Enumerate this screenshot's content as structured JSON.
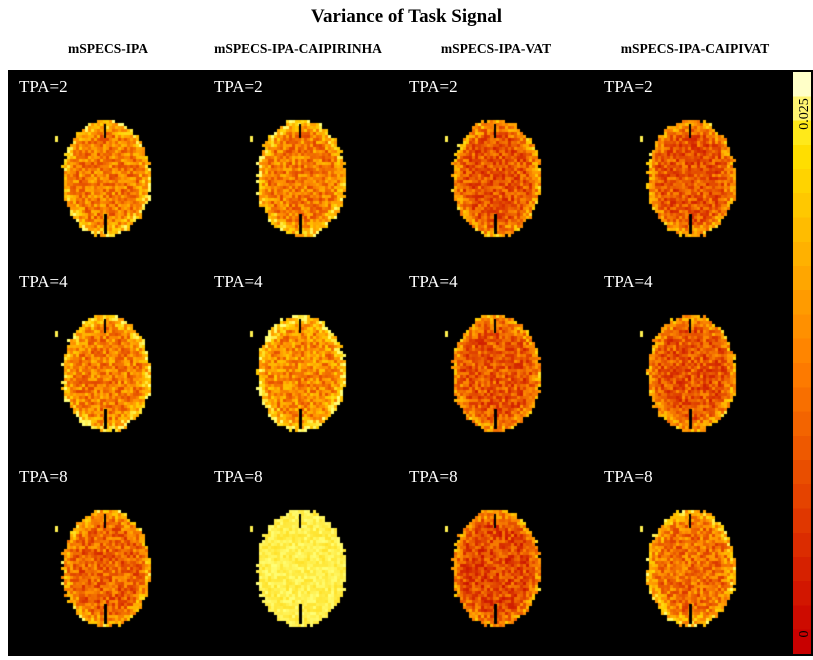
{
  "title": "Variance of Task Signal",
  "columns": [
    "mSPECS-IPA",
    "mSPECS-IPA-CAIPIRINHA",
    "mSPECS-IPA-VAT",
    "mSPECS-IPA-CAIPIVAT"
  ],
  "rows": [
    {
      "label": "TPA=2",
      "intensity": [
        0.55,
        0.55,
        0.4,
        0.4
      ]
    },
    {
      "label": "TPA=4",
      "intensity": [
        0.55,
        0.6,
        0.4,
        0.4
      ]
    },
    {
      "label": "TPA=8",
      "intensity": [
        0.45,
        0.98,
        0.35,
        0.5
      ]
    }
  ],
  "colorbar": {
    "max_label": "0.025",
    "min_label": "0",
    "colors": [
      "#d10000",
      "#ff2a00",
      "#ff6a00",
      "#ffa000",
      "#ffd200",
      "#ffff60"
    ]
  }
}
